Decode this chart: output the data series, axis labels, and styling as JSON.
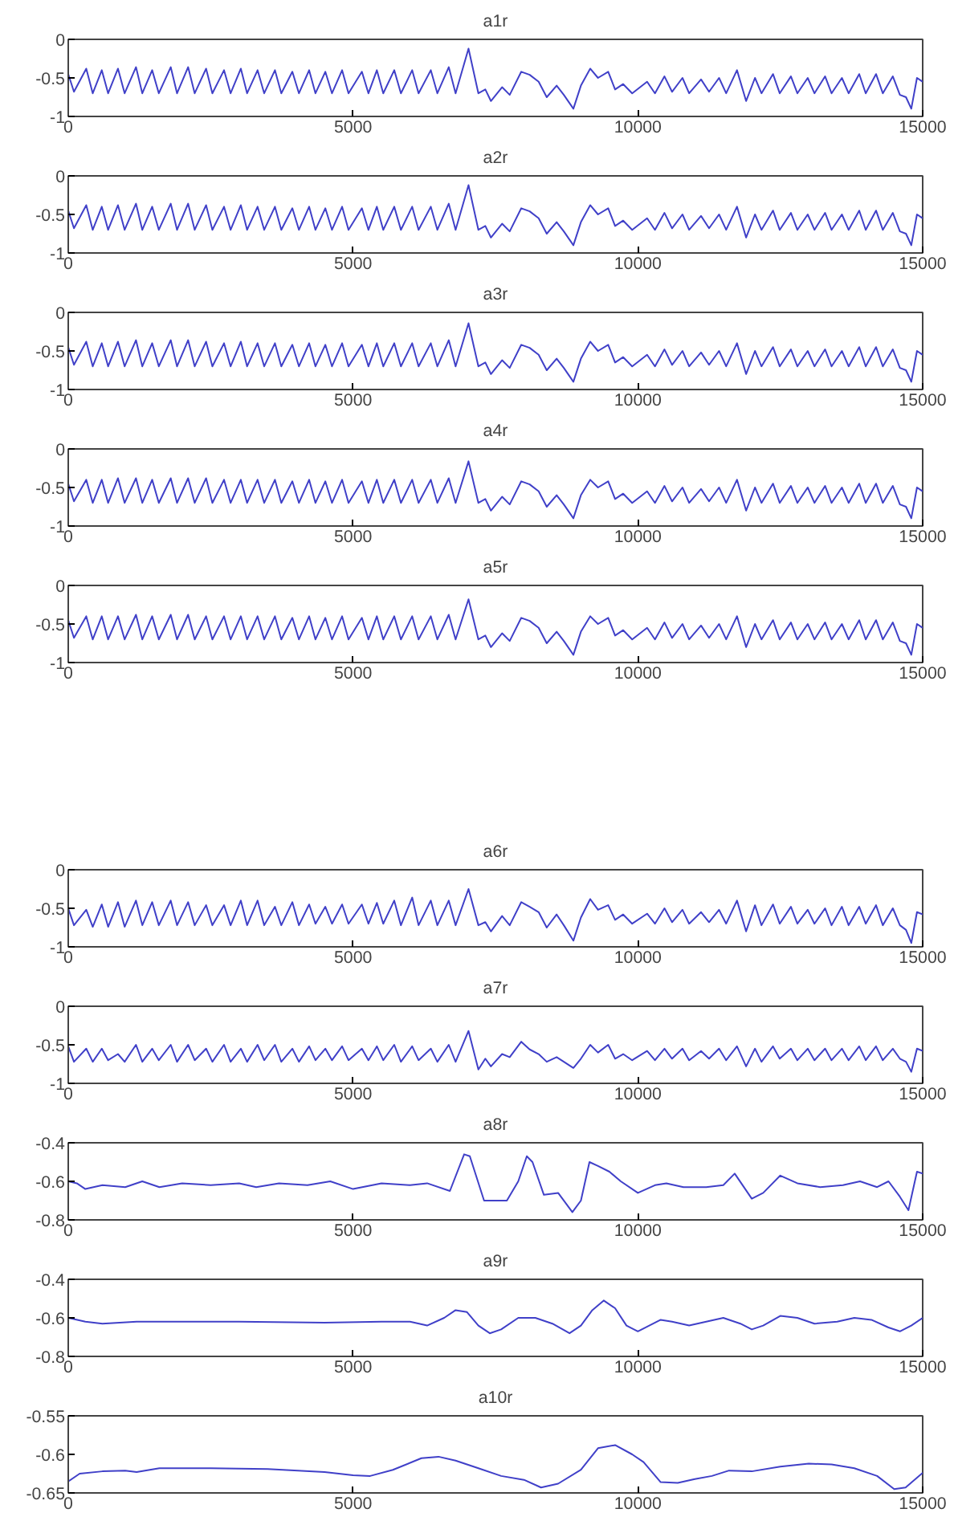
{
  "chart_data": [
    {
      "type": "line",
      "title": "a1r",
      "color": "#4040c8",
      "xlim": [
        0,
        15000
      ],
      "ylim": [
        -1,
        0
      ],
      "xticks": [
        0,
        5000,
        10000,
        15000
      ],
      "yticks": [
        -1,
        -0.5,
        0
      ],
      "x": [
        0,
        100,
        316,
        430,
        589,
        700,
        873,
        990,
        1189,
        1300,
        1473,
        1590,
        1799,
        1910,
        2104,
        2220,
        2420,
        2530,
        2735,
        2850,
        3030,
        3140,
        3324,
        3440,
        3629,
        3740,
        3934,
        4050,
        4229,
        4340,
        4513,
        4630,
        4808,
        4920,
        5155,
        5270,
        5418,
        5530,
        5723,
        5840,
        6038,
        6150,
        6365,
        6480,
        6680,
        6800,
        7027,
        7200,
        7322,
        7420,
        7616,
        7750,
        7953,
        8100,
        8258,
        8400,
        8574,
        8700,
        8868,
        9000,
        9163,
        9300,
        9479,
        9600,
        9742,
        9900,
        10162,
        10300,
        10467,
        10600,
        10783,
        10900,
        11109,
        11250,
        11425,
        11550,
        11740,
        11900,
        12056,
        12170,
        12372,
        12490,
        12687,
        12800,
        12982,
        13100,
        13287,
        13400,
        13582,
        13700,
        13886,
        14000,
        14181,
        14300,
        14476,
        14600,
        14707,
        14800,
        14900,
        15000
      ],
      "values": [
        -0.45,
        -0.68,
        -0.38,
        -0.7,
        -0.4,
        -0.7,
        -0.38,
        -0.7,
        -0.36,
        -0.7,
        -0.4,
        -0.7,
        -0.36,
        -0.7,
        -0.36,
        -0.7,
        -0.38,
        -0.7,
        -0.4,
        -0.7,
        -0.38,
        -0.7,
        -0.4,
        -0.7,
        -0.4,
        -0.7,
        -0.42,
        -0.7,
        -0.4,
        -0.7,
        -0.42,
        -0.7,
        -0.4,
        -0.7,
        -0.42,
        -0.7,
        -0.4,
        -0.7,
        -0.4,
        -0.7,
        -0.4,
        -0.7,
        -0.4,
        -0.7,
        -0.36,
        -0.7,
        -0.12,
        -0.7,
        -0.65,
        -0.8,
        -0.62,
        -0.72,
        -0.42,
        -0.46,
        -0.55,
        -0.75,
        -0.6,
        -0.72,
        -0.9,
        -0.6,
        -0.38,
        -0.5,
        -0.42,
        -0.65,
        -0.58,
        -0.7,
        -0.55,
        -0.7,
        -0.48,
        -0.68,
        -0.5,
        -0.7,
        -0.52,
        -0.68,
        -0.5,
        -0.7,
        -0.4,
        -0.8,
        -0.5,
        -0.7,
        -0.45,
        -0.7,
        -0.48,
        -0.7,
        -0.5,
        -0.7,
        -0.48,
        -0.7,
        -0.5,
        -0.7,
        -0.45,
        -0.7,
        -0.45,
        -0.7,
        -0.48,
        -0.72,
        -0.75,
        -0.9,
        -0.5,
        -0.55
      ]
    },
    {
      "type": "line",
      "title": "a2r",
      "color": "#4040c8",
      "xlim": [
        0,
        15000
      ],
      "ylim": [
        -1,
        0
      ],
      "xticks": [
        0,
        5000,
        10000,
        15000
      ],
      "yticks": [
        -1,
        -0.5,
        0
      ],
      "x": [
        0,
        100,
        316,
        430,
        589,
        700,
        873,
        990,
        1189,
        1300,
        1473,
        1590,
        1799,
        1910,
        2104,
        2220,
        2420,
        2530,
        2735,
        2850,
        3030,
        3140,
        3324,
        3440,
        3629,
        3740,
        3934,
        4050,
        4229,
        4340,
        4513,
        4630,
        4808,
        4920,
        5155,
        5270,
        5418,
        5530,
        5723,
        5840,
        6038,
        6150,
        6365,
        6480,
        6680,
        6800,
        7027,
        7200,
        7322,
        7420,
        7616,
        7750,
        7953,
        8100,
        8258,
        8400,
        8574,
        8700,
        8868,
        9000,
        9163,
        9300,
        9479,
        9600,
        9742,
        9900,
        10162,
        10300,
        10467,
        10600,
        10783,
        10900,
        11109,
        11250,
        11425,
        11550,
        11740,
        11900,
        12056,
        12170,
        12372,
        12490,
        12687,
        12800,
        12982,
        13100,
        13287,
        13400,
        13582,
        13700,
        13886,
        14000,
        14181,
        14300,
        14476,
        14600,
        14707,
        14800,
        14900,
        15000
      ],
      "values": [
        -0.45,
        -0.68,
        -0.38,
        -0.7,
        -0.4,
        -0.7,
        -0.38,
        -0.7,
        -0.36,
        -0.7,
        -0.4,
        -0.7,
        -0.36,
        -0.7,
        -0.36,
        -0.7,
        -0.38,
        -0.7,
        -0.4,
        -0.7,
        -0.38,
        -0.7,
        -0.4,
        -0.7,
        -0.4,
        -0.7,
        -0.42,
        -0.7,
        -0.4,
        -0.7,
        -0.42,
        -0.7,
        -0.4,
        -0.7,
        -0.42,
        -0.7,
        -0.4,
        -0.7,
        -0.4,
        -0.7,
        -0.4,
        -0.7,
        -0.4,
        -0.7,
        -0.36,
        -0.7,
        -0.12,
        -0.7,
        -0.65,
        -0.8,
        -0.62,
        -0.72,
        -0.42,
        -0.46,
        -0.55,
        -0.75,
        -0.6,
        -0.72,
        -0.9,
        -0.6,
        -0.38,
        -0.5,
        -0.42,
        -0.65,
        -0.58,
        -0.7,
        -0.55,
        -0.7,
        -0.48,
        -0.68,
        -0.5,
        -0.7,
        -0.52,
        -0.68,
        -0.5,
        -0.7,
        -0.4,
        -0.8,
        -0.5,
        -0.7,
        -0.45,
        -0.7,
        -0.48,
        -0.7,
        -0.5,
        -0.7,
        -0.48,
        -0.7,
        -0.5,
        -0.7,
        -0.45,
        -0.7,
        -0.45,
        -0.7,
        -0.48,
        -0.72,
        -0.75,
        -0.9,
        -0.5,
        -0.55
      ]
    },
    {
      "type": "line",
      "title": "a3r",
      "color": "#4040c8",
      "xlim": [
        0,
        15000
      ],
      "ylim": [
        -1,
        0
      ],
      "xticks": [
        0,
        5000,
        10000,
        15000
      ],
      "yticks": [
        -1,
        -0.5,
        0
      ],
      "x": [
        0,
        100,
        316,
        430,
        589,
        700,
        873,
        990,
        1189,
        1300,
        1473,
        1590,
        1799,
        1910,
        2104,
        2220,
        2420,
        2530,
        2735,
        2850,
        3030,
        3140,
        3324,
        3440,
        3629,
        3740,
        3934,
        4050,
        4229,
        4340,
        4513,
        4630,
        4808,
        4920,
        5155,
        5270,
        5418,
        5530,
        5723,
        5840,
        6038,
        6150,
        6365,
        6480,
        6680,
        6800,
        7027,
        7200,
        7322,
        7420,
        7616,
        7750,
        7953,
        8100,
        8258,
        8400,
        8574,
        8700,
        8868,
        9000,
        9163,
        9300,
        9479,
        9600,
        9742,
        9900,
        10162,
        10300,
        10467,
        10600,
        10783,
        10900,
        11109,
        11250,
        11425,
        11550,
        11740,
        11900,
        12056,
        12170,
        12372,
        12490,
        12687,
        12800,
        12982,
        13100,
        13287,
        13400,
        13582,
        13700,
        13886,
        14000,
        14181,
        14300,
        14476,
        14600,
        14707,
        14800,
        14900,
        15000
      ],
      "values": [
        -0.45,
        -0.68,
        -0.38,
        -0.7,
        -0.4,
        -0.7,
        -0.38,
        -0.7,
        -0.36,
        -0.7,
        -0.4,
        -0.7,
        -0.36,
        -0.7,
        -0.36,
        -0.7,
        -0.38,
        -0.7,
        -0.4,
        -0.7,
        -0.38,
        -0.7,
        -0.4,
        -0.7,
        -0.4,
        -0.7,
        -0.42,
        -0.7,
        -0.4,
        -0.7,
        -0.42,
        -0.7,
        -0.4,
        -0.7,
        -0.42,
        -0.7,
        -0.4,
        -0.7,
        -0.4,
        -0.7,
        -0.4,
        -0.7,
        -0.4,
        -0.7,
        -0.36,
        -0.7,
        -0.14,
        -0.7,
        -0.65,
        -0.8,
        -0.62,
        -0.72,
        -0.42,
        -0.46,
        -0.55,
        -0.75,
        -0.6,
        -0.72,
        -0.9,
        -0.6,
        -0.38,
        -0.5,
        -0.42,
        -0.65,
        -0.58,
        -0.7,
        -0.55,
        -0.7,
        -0.48,
        -0.68,
        -0.5,
        -0.7,
        -0.52,
        -0.68,
        -0.5,
        -0.7,
        -0.4,
        -0.8,
        -0.5,
        -0.7,
        -0.45,
        -0.7,
        -0.48,
        -0.7,
        -0.5,
        -0.7,
        -0.48,
        -0.7,
        -0.5,
        -0.7,
        -0.45,
        -0.7,
        -0.45,
        -0.7,
        -0.48,
        -0.72,
        -0.75,
        -0.9,
        -0.5,
        -0.55
      ]
    },
    {
      "type": "line",
      "title": "a4r",
      "color": "#4040c8",
      "xlim": [
        0,
        15000
      ],
      "ylim": [
        -1,
        0
      ],
      "xticks": [
        0,
        5000,
        10000,
        15000
      ],
      "yticks": [
        -1,
        -0.5,
        0
      ],
      "x": [
        0,
        100,
        316,
        430,
        589,
        700,
        873,
        990,
        1189,
        1300,
        1473,
        1590,
        1799,
        1910,
        2104,
        2220,
        2420,
        2530,
        2735,
        2850,
        3030,
        3140,
        3324,
        3440,
        3629,
        3740,
        3934,
        4050,
        4229,
        4340,
        4513,
        4630,
        4808,
        4920,
        5155,
        5270,
        5418,
        5530,
        5723,
        5840,
        6038,
        6150,
        6365,
        6480,
        6680,
        6800,
        7027,
        7200,
        7322,
        7420,
        7616,
        7750,
        7953,
        8100,
        8258,
        8400,
        8574,
        8700,
        8868,
        9000,
        9163,
        9300,
        9479,
        9600,
        9742,
        9900,
        10162,
        10300,
        10467,
        10600,
        10783,
        10900,
        11109,
        11250,
        11425,
        11550,
        11740,
        11900,
        12056,
        12170,
        12372,
        12490,
        12687,
        12800,
        12982,
        13100,
        13287,
        13400,
        13582,
        13700,
        13886,
        14000,
        14181,
        14300,
        14476,
        14600,
        14707,
        14800,
        14900,
        15000
      ],
      "values": [
        -0.45,
        -0.68,
        -0.4,
        -0.7,
        -0.4,
        -0.7,
        -0.38,
        -0.7,
        -0.38,
        -0.7,
        -0.4,
        -0.7,
        -0.38,
        -0.7,
        -0.38,
        -0.7,
        -0.38,
        -0.7,
        -0.4,
        -0.7,
        -0.4,
        -0.7,
        -0.4,
        -0.7,
        -0.4,
        -0.7,
        -0.42,
        -0.7,
        -0.4,
        -0.7,
        -0.42,
        -0.7,
        -0.4,
        -0.7,
        -0.42,
        -0.7,
        -0.4,
        -0.7,
        -0.4,
        -0.7,
        -0.4,
        -0.7,
        -0.4,
        -0.7,
        -0.38,
        -0.7,
        -0.16,
        -0.7,
        -0.65,
        -0.8,
        -0.62,
        -0.72,
        -0.42,
        -0.46,
        -0.55,
        -0.75,
        -0.6,
        -0.72,
        -0.9,
        -0.6,
        -0.4,
        -0.5,
        -0.42,
        -0.65,
        -0.58,
        -0.7,
        -0.55,
        -0.7,
        -0.48,
        -0.68,
        -0.5,
        -0.7,
        -0.52,
        -0.68,
        -0.5,
        -0.7,
        -0.4,
        -0.8,
        -0.5,
        -0.7,
        -0.45,
        -0.7,
        -0.48,
        -0.7,
        -0.5,
        -0.7,
        -0.48,
        -0.7,
        -0.5,
        -0.7,
        -0.45,
        -0.7,
        -0.45,
        -0.7,
        -0.48,
        -0.72,
        -0.75,
        -0.9,
        -0.5,
        -0.55
      ]
    },
    {
      "type": "line",
      "title": "a5r",
      "color": "#4040c8",
      "xlim": [
        0,
        15000
      ],
      "ylim": [
        -1,
        0
      ],
      "xticks": [
        0,
        5000,
        10000,
        15000
      ],
      "yticks": [
        -1,
        -0.5,
        0
      ],
      "x": [
        0,
        100,
        316,
        430,
        589,
        700,
        873,
        990,
        1189,
        1300,
        1473,
        1590,
        1799,
        1910,
        2104,
        2220,
        2420,
        2530,
        2735,
        2850,
        3030,
        3140,
        3324,
        3440,
        3629,
        3740,
        3934,
        4050,
        4229,
        4340,
        4513,
        4630,
        4808,
        4920,
        5155,
        5270,
        5418,
        5530,
        5723,
        5840,
        6038,
        6150,
        6365,
        6480,
        6680,
        6800,
        7027,
        7200,
        7322,
        7420,
        7616,
        7750,
        7953,
        8100,
        8258,
        8400,
        8574,
        8700,
        8868,
        9000,
        9163,
        9300,
        9479,
        9600,
        9742,
        9900,
        10162,
        10300,
        10467,
        10600,
        10783,
        10900,
        11109,
        11250,
        11425,
        11550,
        11740,
        11900,
        12056,
        12170,
        12372,
        12490,
        12687,
        12800,
        12982,
        13100,
        13287,
        13400,
        13582,
        13700,
        13886,
        14000,
        14181,
        14300,
        14476,
        14600,
        14707,
        14800,
        14900,
        15000
      ],
      "values": [
        -0.45,
        -0.68,
        -0.4,
        -0.7,
        -0.4,
        -0.7,
        -0.4,
        -0.7,
        -0.38,
        -0.7,
        -0.4,
        -0.7,
        -0.38,
        -0.7,
        -0.38,
        -0.7,
        -0.4,
        -0.7,
        -0.4,
        -0.7,
        -0.4,
        -0.7,
        -0.4,
        -0.7,
        -0.4,
        -0.7,
        -0.42,
        -0.7,
        -0.4,
        -0.7,
        -0.42,
        -0.7,
        -0.4,
        -0.7,
        -0.42,
        -0.7,
        -0.4,
        -0.7,
        -0.4,
        -0.7,
        -0.4,
        -0.7,
        -0.4,
        -0.7,
        -0.38,
        -0.7,
        -0.18,
        -0.7,
        -0.65,
        -0.8,
        -0.62,
        -0.72,
        -0.42,
        -0.46,
        -0.55,
        -0.75,
        -0.6,
        -0.72,
        -0.9,
        -0.6,
        -0.4,
        -0.5,
        -0.42,
        -0.65,
        -0.58,
        -0.7,
        -0.55,
        -0.7,
        -0.48,
        -0.68,
        -0.5,
        -0.7,
        -0.52,
        -0.68,
        -0.5,
        -0.7,
        -0.4,
        -0.8,
        -0.5,
        -0.7,
        -0.45,
        -0.7,
        -0.48,
        -0.7,
        -0.5,
        -0.7,
        -0.48,
        -0.7,
        -0.5,
        -0.7,
        -0.45,
        -0.7,
        -0.45,
        -0.7,
        -0.48,
        -0.72,
        -0.75,
        -0.9,
        -0.5,
        -0.55
      ]
    },
    {
      "type": "line",
      "title": "a6r",
      "color": "#4040c8",
      "xlim": [
        0,
        15000
      ],
      "ylim": [
        -1,
        0
      ],
      "xticks": [
        0,
        5000,
        10000,
        15000
      ],
      "yticks": [
        -1,
        -0.5,
        0
      ],
      "x": [
        0,
        100,
        316,
        430,
        589,
        700,
        873,
        990,
        1189,
        1300,
        1473,
        1590,
        1799,
        1910,
        2104,
        2220,
        2420,
        2530,
        2735,
        2850,
        3030,
        3140,
        3324,
        3440,
        3629,
        3740,
        3934,
        4050,
        4229,
        4340,
        4513,
        4630,
        4808,
        4920,
        5155,
        5270,
        5418,
        5530,
        5723,
        5840,
        6038,
        6150,
        6365,
        6480,
        6680,
        6800,
        7027,
        7200,
        7322,
        7420,
        7616,
        7750,
        7953,
        8100,
        8258,
        8400,
        8574,
        8700,
        8868,
        9000,
        9163,
        9300,
        9479,
        9600,
        9742,
        9900,
        10162,
        10300,
        10467,
        10600,
        10783,
        10900,
        11109,
        11250,
        11425,
        11550,
        11740,
        11900,
        12056,
        12170,
        12372,
        12490,
        12687,
        12800,
        12982,
        13100,
        13287,
        13400,
        13582,
        13700,
        13886,
        14000,
        14181,
        14300,
        14476,
        14600,
        14707,
        14800,
        14900,
        15000
      ],
      "values": [
        -0.5,
        -0.72,
        -0.52,
        -0.74,
        -0.45,
        -0.74,
        -0.42,
        -0.74,
        -0.4,
        -0.72,
        -0.42,
        -0.72,
        -0.4,
        -0.72,
        -0.42,
        -0.72,
        -0.46,
        -0.72,
        -0.46,
        -0.72,
        -0.4,
        -0.72,
        -0.4,
        -0.72,
        -0.48,
        -0.72,
        -0.42,
        -0.72,
        -0.45,
        -0.7,
        -0.48,
        -0.7,
        -0.45,
        -0.7,
        -0.45,
        -0.7,
        -0.43,
        -0.7,
        -0.4,
        -0.72,
        -0.36,
        -0.72,
        -0.4,
        -0.72,
        -0.4,
        -0.72,
        -0.25,
        -0.72,
        -0.68,
        -0.8,
        -0.6,
        -0.72,
        -0.42,
        -0.48,
        -0.55,
        -0.75,
        -0.58,
        -0.72,
        -0.92,
        -0.62,
        -0.38,
        -0.52,
        -0.46,
        -0.65,
        -0.58,
        -0.7,
        -0.57,
        -0.7,
        -0.5,
        -0.68,
        -0.52,
        -0.7,
        -0.55,
        -0.68,
        -0.52,
        -0.7,
        -0.4,
        -0.8,
        -0.46,
        -0.72,
        -0.45,
        -0.7,
        -0.48,
        -0.7,
        -0.52,
        -0.7,
        -0.5,
        -0.72,
        -0.48,
        -0.72,
        -0.48,
        -0.7,
        -0.46,
        -0.72,
        -0.5,
        -0.72,
        -0.78,
        -0.95,
        -0.55,
        -0.58
      ]
    },
    {
      "type": "line",
      "title": "a7r",
      "color": "#4040c8",
      "xlim": [
        0,
        15000
      ],
      "ylim": [
        -1,
        0
      ],
      "xticks": [
        0,
        5000,
        10000,
        15000
      ],
      "yticks": [
        -1,
        -0.5,
        0
      ],
      "x": [
        0,
        100,
        316,
        430,
        589,
        700,
        873,
        990,
        1189,
        1300,
        1473,
        1590,
        1799,
        1910,
        2104,
        2220,
        2420,
        2530,
        2735,
        2850,
        3030,
        3140,
        3324,
        3440,
        3629,
        3740,
        3934,
        4050,
        4229,
        4340,
        4513,
        4630,
        4808,
        4920,
        5155,
        5270,
        5418,
        5530,
        5723,
        5840,
        6038,
        6150,
        6365,
        6480,
        6680,
        6800,
        7027,
        7200,
        7322,
        7420,
        7616,
        7750,
        7953,
        8100,
        8258,
        8400,
        8574,
        8700,
        8868,
        9000,
        9163,
        9300,
        9479,
        9600,
        9742,
        9900,
        10162,
        10300,
        10467,
        10600,
        10783,
        10900,
        11109,
        11250,
        11425,
        11550,
        11740,
        11900,
        12056,
        12170,
        12372,
        12490,
        12687,
        12800,
        12982,
        13100,
        13287,
        13400,
        13582,
        13700,
        13886,
        14000,
        14181,
        14300,
        14476,
        14600,
        14707,
        14800,
        14900,
        15000
      ],
      "values": [
        -0.52,
        -0.72,
        -0.55,
        -0.72,
        -0.55,
        -0.7,
        -0.62,
        -0.72,
        -0.5,
        -0.72,
        -0.55,
        -0.7,
        -0.5,
        -0.72,
        -0.5,
        -0.7,
        -0.55,
        -0.72,
        -0.5,
        -0.72,
        -0.55,
        -0.72,
        -0.5,
        -0.7,
        -0.5,
        -0.72,
        -0.55,
        -0.72,
        -0.52,
        -0.7,
        -0.55,
        -0.7,
        -0.52,
        -0.7,
        -0.55,
        -0.7,
        -0.52,
        -0.7,
        -0.5,
        -0.72,
        -0.52,
        -0.7,
        -0.55,
        -0.72,
        -0.5,
        -0.72,
        -0.32,
        -0.82,
        -0.68,
        -0.78,
        -0.62,
        -0.66,
        -0.46,
        -0.56,
        -0.62,
        -0.72,
        -0.66,
        -0.72,
        -0.8,
        -0.68,
        -0.5,
        -0.6,
        -0.5,
        -0.68,
        -0.62,
        -0.7,
        -0.58,
        -0.7,
        -0.55,
        -0.68,
        -0.55,
        -0.7,
        -0.58,
        -0.68,
        -0.55,
        -0.7,
        -0.52,
        -0.78,
        -0.55,
        -0.72,
        -0.52,
        -0.68,
        -0.55,
        -0.7,
        -0.55,
        -0.7,
        -0.55,
        -0.7,
        -0.55,
        -0.7,
        -0.52,
        -0.7,
        -0.52,
        -0.7,
        -0.55,
        -0.68,
        -0.72,
        -0.85,
        -0.55,
        -0.58
      ]
    },
    {
      "type": "line",
      "title": "a8r",
      "color": "#4040c8",
      "xlim": [
        0,
        15000
      ],
      "ylim": [
        -0.8,
        -0.4
      ],
      "xticks": [
        0,
        5000,
        10000,
        15000
      ],
      "yticks": [
        -0.8,
        -0.6,
        -0.4
      ],
      "x": [
        0,
        150,
        300,
        600,
        1000,
        1300,
        1600,
        2000,
        2500,
        3000,
        3300,
        3700,
        4200,
        4600,
        5000,
        5500,
        6000,
        6300,
        6700,
        6950,
        7050,
        7300,
        7500,
        7700,
        7900,
        8050,
        8150,
        8350,
        8600,
        8850,
        9000,
        9150,
        9300,
        9500,
        9700,
        10000,
        10300,
        10500,
        10800,
        11200,
        11500,
        11700,
        12000,
        12200,
        12500,
        12800,
        13200,
        13600,
        13900,
        14200,
        14400,
        14600,
        14750,
        14900,
        15000
      ],
      "values": [
        -0.6,
        -0.61,
        -0.64,
        -0.62,
        -0.63,
        -0.6,
        -0.63,
        -0.61,
        -0.62,
        -0.61,
        -0.63,
        -0.61,
        -0.62,
        -0.6,
        -0.64,
        -0.61,
        -0.62,
        -0.61,
        -0.65,
        -0.46,
        -0.47,
        -0.7,
        -0.7,
        -0.7,
        -0.6,
        -0.47,
        -0.5,
        -0.67,
        -0.66,
        -0.76,
        -0.7,
        -0.5,
        -0.52,
        -0.55,
        -0.6,
        -0.66,
        -0.62,
        -0.61,
        -0.63,
        -0.63,
        -0.62,
        -0.56,
        -0.69,
        -0.66,
        -0.57,
        -0.61,
        -0.63,
        -0.62,
        -0.6,
        -0.63,
        -0.6,
        -0.68,
        -0.75,
        -0.55,
        -0.56
      ]
    },
    {
      "type": "line",
      "title": "a9r",
      "color": "#4040c8",
      "xlim": [
        0,
        15000
      ],
      "ylim": [
        -0.8,
        -0.4
      ],
      "xticks": [
        0,
        5000,
        10000,
        15000
      ],
      "yticks": [
        -0.8,
        -0.6,
        -0.4
      ],
      "x": [
        0,
        300,
        600,
        1200,
        3000,
        4500,
        5500,
        6000,
        6300,
        6600,
        6800,
        7000,
        7200,
        7400,
        7600,
        7900,
        8200,
        8500,
        8800,
        9000,
        9200,
        9400,
        9600,
        9800,
        10000,
        10200,
        10400,
        10600,
        10900,
        11200,
        11500,
        11800,
        12000,
        12200,
        12500,
        12800,
        13100,
        13500,
        13800,
        14100,
        14400,
        14600,
        14800,
        15000
      ],
      "values": [
        -0.6,
        -0.62,
        -0.63,
        -0.62,
        -0.62,
        -0.625,
        -0.62,
        -0.62,
        -0.64,
        -0.6,
        -0.56,
        -0.57,
        -0.64,
        -0.68,
        -0.66,
        -0.6,
        -0.6,
        -0.63,
        -0.68,
        -0.64,
        -0.56,
        -0.51,
        -0.55,
        -0.64,
        -0.67,
        -0.64,
        -0.61,
        -0.62,
        -0.64,
        -0.62,
        -0.6,
        -0.63,
        -0.66,
        -0.64,
        -0.59,
        -0.6,
        -0.63,
        -0.62,
        -0.6,
        -0.61,
        -0.65,
        -0.67,
        -0.64,
        -0.6
      ]
    },
    {
      "type": "line",
      "title": "a10r",
      "color": "#4040c8",
      "xlim": [
        0,
        15000
      ],
      "ylim": [
        -0.65,
        -0.55
      ],
      "xticks": [
        0,
        5000,
        10000,
        15000
      ],
      "yticks": [
        -0.65,
        -0.6,
        -0.55
      ],
      "x": [
        0,
        200,
        600,
        1000,
        1200,
        1600,
        2500,
        3500,
        4500,
        5000,
        5300,
        5700,
        6200,
        6500,
        6800,
        7200,
        7600,
        8000,
        8300,
        8600,
        9000,
        9300,
        9600,
        9900,
        10100,
        10400,
        10700,
        11000,
        11300,
        11600,
        12000,
        12500,
        13000,
        13400,
        13800,
        14200,
        14500,
        14700,
        15000
      ],
      "values": [
        -0.635,
        -0.625,
        -0.622,
        -0.621,
        -0.623,
        -0.618,
        -0.618,
        -0.619,
        -0.623,
        -0.627,
        -0.628,
        -0.62,
        -0.605,
        -0.603,
        -0.608,
        -0.618,
        -0.628,
        -0.633,
        -0.643,
        -0.638,
        -0.62,
        -0.592,
        -0.588,
        -0.6,
        -0.61,
        -0.636,
        -0.637,
        -0.632,
        -0.628,
        -0.621,
        -0.622,
        -0.616,
        -0.612,
        -0.613,
        -0.618,
        -0.628,
        -0.645,
        -0.643,
        -0.624
      ]
    }
  ]
}
